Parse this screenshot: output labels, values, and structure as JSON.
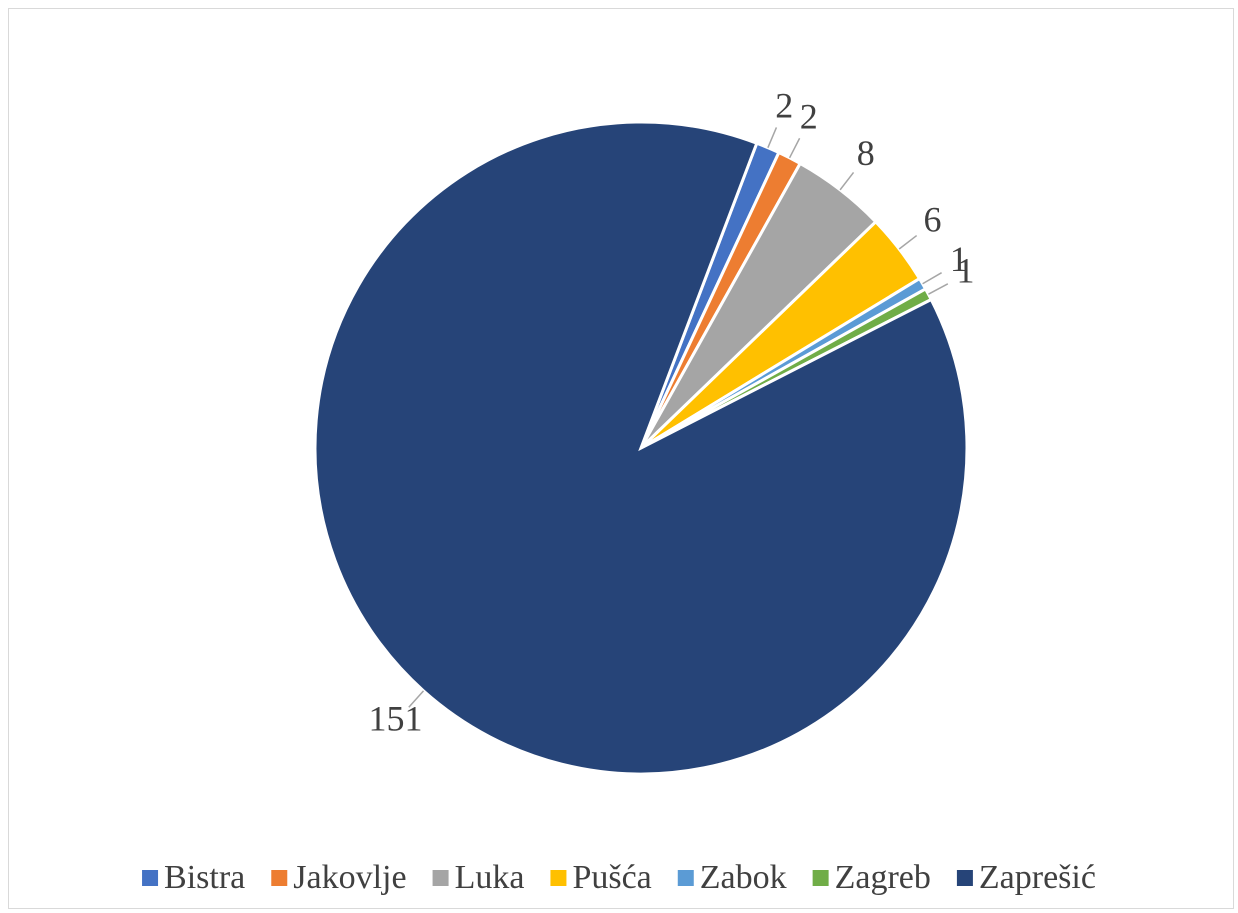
{
  "chart_data": {
    "type": "pie",
    "categories": [
      "Bistra",
      "Jakovlje",
      "Luka",
      "Pušća",
      "Zabok",
      "Zagreb",
      "Zaprešić"
    ],
    "values": [
      2,
      2,
      8,
      6,
      1,
      1,
      151
    ],
    "colors": [
      "#4472c4",
      "#ed7d31",
      "#a5a5a5",
      "#ffc000",
      "#5b9bd5",
      "#70ad47",
      "#264478"
    ],
    "legend": "bottom"
  }
}
